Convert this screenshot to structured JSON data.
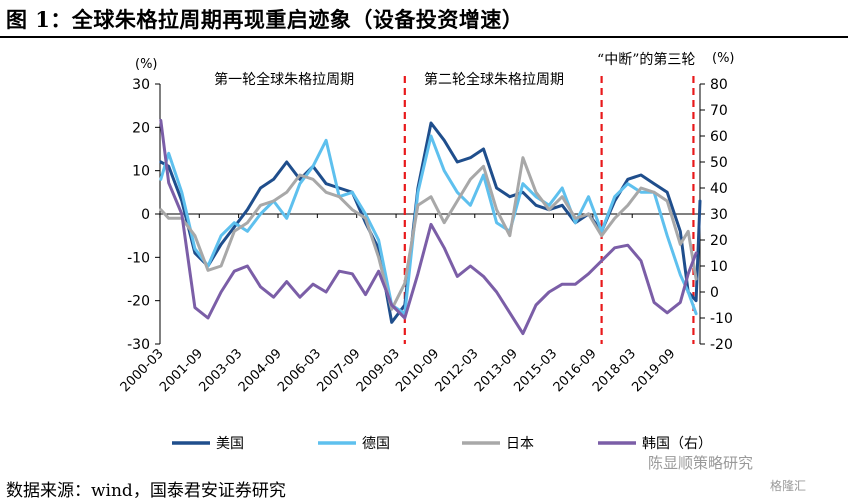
{
  "title": "图 1：全球朱格拉周期再现重启迹象（设备投资增速）",
  "source": "数据来源：wind，国泰君安证券研究",
  "watermark": {
    "brand": "陈显顺策略研究",
    "site": "格隆汇"
  },
  "chart_data": {
    "type": "line",
    "title": "",
    "left_axis": {
      "unit": "(%)",
      "ylim": [
        -30,
        30
      ],
      "ticks": [
        30,
        20,
        10,
        0,
        -10,
        -20,
        -30
      ]
    },
    "right_axis": {
      "unit": "(%)",
      "ylim": [
        -20,
        80
      ],
      "ticks": [
        80,
        70,
        60,
        50,
        40,
        30,
        20,
        10,
        0,
        -10,
        -20
      ]
    },
    "x_ticks": [
      "2000-03",
      "2001-09",
      "2003-03",
      "2004-09",
      "2006-03",
      "2007-09",
      "2009-03",
      "2010-09",
      "2012-03",
      "2013-09",
      "2015-03",
      "2016-09",
      "2018-03",
      "2019-09"
    ],
    "x_range": [
      2000.17,
      2020.75
    ],
    "cycle_markers": [
      2009.5,
      2017.0,
      2020.5
    ],
    "annotations": [
      {
        "text": "第一轮全球朱格拉周期",
        "x": 2004.9
      },
      {
        "text": "第二轮全球朱格拉周期",
        "x": 2012.9
      },
      {
        "text": "“中断”的第三轮",
        "x": 2018.7
      }
    ],
    "series": [
      {
        "name": "美国",
        "axis": "left",
        "color": "#1f4e8c",
        "x": [
          2000.2,
          2000.5,
          2001.0,
          2001.5,
          2002.0,
          2002.5,
          2003.0,
          2003.5,
          2004.0,
          2004.5,
          2005.0,
          2005.5,
          2006.0,
          2006.5,
          2007.0,
          2007.5,
          2008.0,
          2008.5,
          2009.0,
          2009.5,
          2010.0,
          2010.5,
          2011.0,
          2011.5,
          2012.0,
          2012.5,
          2013.0,
          2013.5,
          2014.0,
          2014.5,
          2015.0,
          2015.5,
          2016.0,
          2016.5,
          2017.0,
          2017.5,
          2018.0,
          2018.5,
          2019.0,
          2019.5,
          2020.0,
          2020.3,
          2020.6,
          2020.75
        ],
        "values": [
          12,
          11,
          3,
          -9,
          -12,
          -7,
          -3,
          1,
          6,
          8,
          12,
          8,
          11,
          7,
          6,
          5,
          -2,
          -8,
          -25,
          -21,
          6,
          21,
          17,
          12,
          13,
          15,
          6,
          4,
          5,
          2,
          1,
          2,
          -2,
          0,
          -4,
          3,
          8,
          9,
          7,
          5,
          -4,
          -18,
          -20,
          3
        ]
      },
      {
        "name": "德国",
        "axis": "left",
        "color": "#5ec0ee",
        "x": [
          2000.2,
          2000.5,
          2001.0,
          2001.5,
          2002.0,
          2002.5,
          2003.0,
          2003.5,
          2004.0,
          2004.5,
          2005.0,
          2005.5,
          2006.0,
          2006.5,
          2007.0,
          2007.5,
          2008.0,
          2008.5,
          2009.0,
          2009.5,
          2010.0,
          2010.5,
          2011.0,
          2011.5,
          2012.0,
          2012.5,
          2013.0,
          2013.5,
          2014.0,
          2014.5,
          2015.0,
          2015.5,
          2016.0,
          2016.5,
          2017.0,
          2017.5,
          2018.0,
          2018.5,
          2019.0,
          2019.5,
          2020.0,
          2020.3,
          2020.6
        ],
        "values": [
          8,
          14,
          5,
          -8,
          -12,
          -5,
          -2,
          -4,
          0,
          3,
          -1,
          7,
          11,
          17,
          4,
          5,
          0,
          -6,
          -21,
          -23,
          5,
          18,
          10,
          5,
          2,
          9,
          -2,
          -4,
          7,
          4,
          2,
          6,
          -2,
          4,
          -4,
          4,
          7,
          5,
          5,
          -5,
          -14,
          -18,
          -23
        ]
      },
      {
        "name": "日本",
        "axis": "left",
        "color": "#a8a8a8",
        "x": [
          2000.2,
          2000.5,
          2001.0,
          2001.5,
          2002.0,
          2002.5,
          2003.0,
          2003.5,
          2004.0,
          2004.5,
          2005.0,
          2005.5,
          2006.0,
          2006.5,
          2007.0,
          2007.5,
          2008.0,
          2008.5,
          2009.0,
          2009.5,
          2010.0,
          2010.5,
          2011.0,
          2011.5,
          2012.0,
          2012.5,
          2013.0,
          2013.5,
          2014.0,
          2014.5,
          2015.0,
          2015.5,
          2016.0,
          2016.5,
          2017.0,
          2017.5,
          2018.0,
          2018.5,
          2019.0,
          2019.5,
          2020.0,
          2020.3,
          2020.6
        ],
        "values": [
          1,
          -1,
          -1,
          -5,
          -13,
          -12,
          -4,
          -2,
          2,
          3,
          5,
          9,
          8,
          5,
          4,
          1,
          -1,
          -10,
          -22,
          -16,
          2,
          4,
          -2,
          3,
          8,
          11,
          1,
          -5,
          13,
          5,
          1,
          4,
          -1,
          0,
          -5,
          -1,
          2,
          6,
          5,
          3,
          -7,
          -4,
          -15
        ]
      },
      {
        "name": "韩国（右）",
        "axis": "right",
        "color": "#7b5ea7",
        "x": [
          2000.2,
          2000.5,
          2001.0,
          2001.5,
          2002.0,
          2002.5,
          2003.0,
          2003.5,
          2004.0,
          2004.5,
          2005.0,
          2005.5,
          2006.0,
          2006.5,
          2007.0,
          2007.5,
          2008.0,
          2008.5,
          2009.0,
          2009.5,
          2010.0,
          2010.5,
          2011.0,
          2011.5,
          2012.0,
          2012.5,
          2013.0,
          2013.5,
          2014.0,
          2014.5,
          2015.0,
          2015.5,
          2016.0,
          2016.5,
          2017.0,
          2017.5,
          2018.0,
          2018.5,
          2019.0,
          2019.5,
          2020.0,
          2020.3,
          2020.6
        ],
        "values": [
          66,
          42,
          30,
          -6,
          -10,
          0,
          8,
          10,
          2,
          -2,
          4,
          -2,
          3,
          0,
          8,
          7,
          -1,
          8,
          -5,
          -10,
          7,
          26,
          17,
          6,
          10,
          6,
          0,
          -8,
          -16,
          -5,
          0,
          3,
          3,
          7,
          12,
          17,
          18,
          12,
          -4,
          -8,
          -4,
          7,
          15
        ]
      }
    ]
  }
}
